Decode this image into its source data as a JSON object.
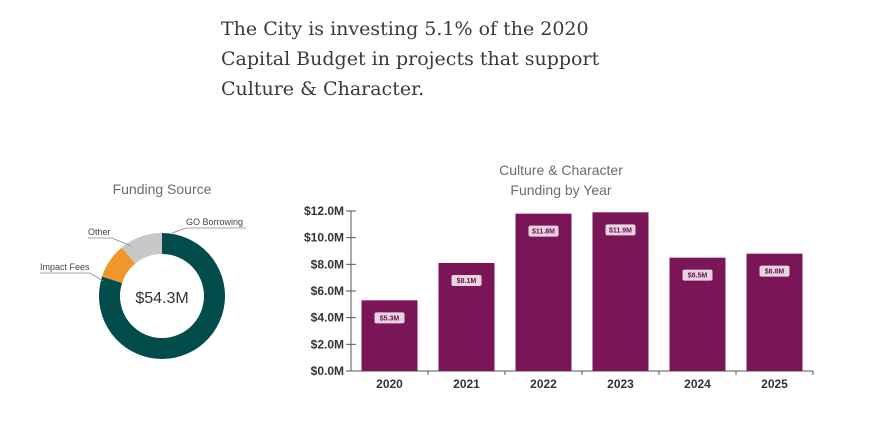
{
  "headline": {
    "lines": [
      "The City is investing 5.1% of the 2020",
      "Capital Budget in projects that support",
      "Culture & Character."
    ]
  },
  "chart_data": [
    {
      "type": "pie",
      "variant": "donut",
      "title": "Funding Source",
      "center_label": "$54.3M",
      "slices": [
        {
          "name": "GO Borrowing",
          "value": 80,
          "color": "#034c4c"
        },
        {
          "name": "Impact Fees",
          "value": 9,
          "color": "#f0962c"
        },
        {
          "name": "Other",
          "value": 11,
          "color": "#c8c8c8"
        }
      ]
    },
    {
      "type": "bar",
      "title_lines": [
        "Culture & Character",
        "Funding by Year"
      ],
      "categories": [
        "2020",
        "2021",
        "2022",
        "2023",
        "2024",
        "2025"
      ],
      "values": [
        5.3,
        8.1,
        11.8,
        11.9,
        8.5,
        8.8
      ],
      "data_labels": [
        "$5.3M",
        "$8.1M",
        "$11.8M",
        "$11.9M",
        "$8.5M",
        "$8.8M"
      ],
      "ylim": [
        0,
        12
      ],
      "yticks": [
        0,
        2,
        4,
        6,
        8,
        10,
        12
      ],
      "ytick_labels": [
        "$0.0M",
        "$2.0M",
        "$4.0M",
        "$6.0M",
        "$8.0M",
        "$10.0M",
        "$12.0M"
      ],
      "bar_color": "#7a1658",
      "label_bg": "#e8d4e0",
      "grid": false
    }
  ]
}
